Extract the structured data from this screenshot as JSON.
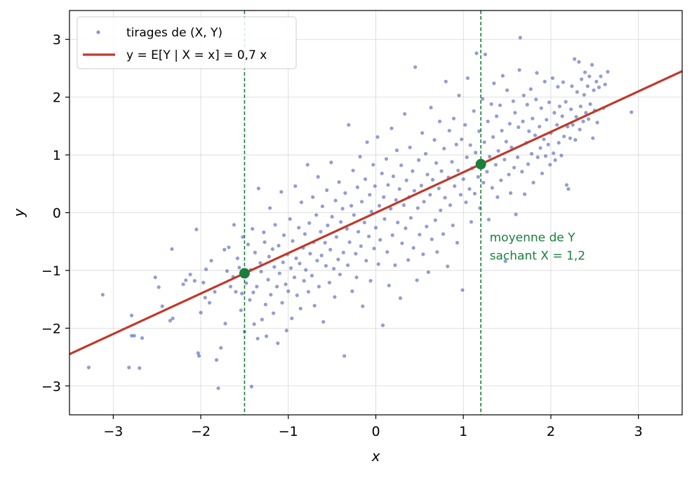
{
  "chart_data": {
    "type": "scatter",
    "title": "",
    "xlabel": "x",
    "ylabel": "y",
    "xlim": [
      -3.5,
      3.5
    ],
    "ylim": [
      -3.5,
      3.5
    ],
    "xticks": [
      -3,
      -2,
      -1,
      0,
      1,
      2,
      3
    ],
    "yticks": [
      -3,
      -2,
      -1,
      0,
      1,
      2,
      3
    ],
    "xtick_labels": [
      "−3",
      "−2",
      "−1",
      "0",
      "1",
      "2",
      "3"
    ],
    "ytick_labels": [
      "−3",
      "−2",
      "−1",
      "0",
      "1",
      "2",
      "3"
    ],
    "grid": true,
    "legend": {
      "placement": "top-left",
      "entries": [
        {
          "label": "tirages de (X, Y)",
          "marker": "dot"
        },
        {
          "label": "y = E[Y | X = x] = 0,7 x",
          "marker": "line"
        }
      ]
    },
    "colors": {
      "points": "#3b4fa8",
      "line": "#c0392b",
      "highlight": "#1a7f3c"
    },
    "regression_line": {
      "slope": 0.7,
      "intercept": 0
    },
    "vertical_lines": [
      -1.5,
      1.2
    ],
    "highlight_points": [
      {
        "x": -1.5,
        "y": -1.05
      },
      {
        "x": 1.2,
        "y": 0.84
      }
    ],
    "annotation": {
      "line1": "moyenne de Y",
      "line2": "sachant X = 1,2",
      "x": 1.3,
      "y": -0.5
    },
    "scatter_points": [
      [
        -3.28,
        -2.68
      ],
      [
        -3.12,
        -1.42
      ],
      [
        -2.82,
        -2.68
      ],
      [
        -2.79,
        -1.78
      ],
      [
        -2.79,
        -2.13
      ],
      [
        -2.76,
        -2.13
      ],
      [
        -2.7,
        -2.69
      ],
      [
        -2.67,
        -2.17
      ],
      [
        -2.52,
        -1.12
      ],
      [
        -2.48,
        -1.29
      ],
      [
        -2.44,
        -1.62
      ],
      [
        -2.35,
        -1.87
      ],
      [
        -2.33,
        -0.63
      ],
      [
        -2.32,
        -1.83
      ],
      [
        -2.2,
        -1.24
      ],
      [
        -2.17,
        -1.17
      ],
      [
        -2.12,
        -1.07
      ],
      [
        -2.07,
        -1.18
      ],
      [
        -2.05,
        -0.29
      ],
      [
        -2.03,
        -2.43
      ],
      [
        -2.02,
        -2.48
      ],
      [
        -2.0,
        -1.73
      ],
      [
        -1.97,
        -1.21
      ],
      [
        -1.95,
        -1.47
      ],
      [
        -1.94,
        -0.98
      ],
      [
        -1.9,
        -1.56
      ],
      [
        -1.88,
        -0.83
      ],
      [
        -1.84,
        -1.37
      ],
      [
        -1.82,
        -2.55
      ],
      [
        -1.8,
        -3.04
      ],
      [
        -1.77,
        -2.34
      ],
      [
        -1.73,
        -0.64
      ],
      [
        -1.72,
        -1.92
      ],
      [
        -1.7,
        -1.01
      ],
      [
        -1.68,
        -0.6
      ],
      [
        -1.66,
        -1.28
      ],
      [
        -1.63,
        -1.11
      ],
      [
        -1.62,
        -0.21
      ],
      [
        -1.6,
        -1.37
      ],
      [
        -1.58,
        -0.79
      ],
      [
        -1.56,
        -0.95
      ],
      [
        -1.54,
        -1.69
      ],
      [
        -1.53,
        -1.4
      ],
      [
        -1.52,
        -0.42
      ],
      [
        -1.5,
        -2.06
      ],
      [
        -1.48,
        -1.22
      ],
      [
        -1.46,
        -0.55
      ],
      [
        -1.44,
        -1.51
      ],
      [
        -1.43,
        -0.99
      ],
      [
        -1.42,
        -3.01
      ],
      [
        -1.41,
        -0.28
      ],
      [
        -1.4,
        -1.38
      ],
      [
        -1.39,
        -1.93
      ],
      [
        -1.38,
        -0.69
      ],
      [
        -1.36,
        -1.28
      ],
      [
        -1.35,
        -2.18
      ],
      [
        -1.34,
        0.42
      ],
      [
        -1.32,
        -0.87
      ],
      [
        -1.31,
        -1.02
      ],
      [
        -1.3,
        -1.85
      ],
      [
        -1.28,
        -0.34
      ],
      [
        -1.27,
        -0.51
      ],
      [
        -1.26,
        -1.59
      ],
      [
        -1.25,
        -2.14
      ],
      [
        -1.23,
        -1.16
      ],
      [
        -1.22,
        -0.76
      ],
      [
        -1.21,
        0.08
      ],
      [
        -1.2,
        -1.42
      ],
      [
        -1.18,
        -0.63
      ],
      [
        -1.17,
        -1.74
      ],
      [
        -1.16,
        -0.94
      ],
      [
        -1.15,
        -0.21
      ],
      [
        -1.13,
        -1.28
      ],
      [
        -1.12,
        -2.26
      ],
      [
        -1.11,
        -0.57
      ],
      [
        -1.1,
        -1.05
      ],
      [
        -1.08,
        0.36
      ],
      [
        -1.07,
        -1.56
      ],
      [
        -1.06,
        -0.86
      ],
      [
        -1.05,
        -0.39
      ],
      [
        -1.03,
        -1.24
      ],
      [
        -1.02,
        -2.04
      ],
      [
        -1.01,
        -0.72
      ],
      [
        -1.0,
        -1.36
      ],
      [
        -0.98,
        -0.11
      ],
      [
        -0.97,
        -0.96
      ],
      [
        -0.96,
        -1.83
      ],
      [
        -0.95,
        -0.49
      ],
      [
        -0.93,
        -1.12
      ],
      [
        -0.92,
        0.46
      ],
      [
        -0.91,
        -0.79
      ],
      [
        -0.9,
        -1.43
      ],
      [
        -0.88,
        -0.26
      ],
      [
        -0.87,
        -0.88
      ],
      [
        -0.86,
        -1.66
      ],
      [
        -0.85,
        0.18
      ],
      [
        -0.83,
        -0.61
      ],
      [
        -0.82,
        -1.18
      ],
      [
        -0.81,
        -0.37
      ],
      [
        -0.8,
        -0.99
      ],
      [
        -0.78,
        0.83
      ],
      [
        -0.77,
        -1.37
      ],
      [
        -0.76,
        -0.18
      ],
      [
        -0.75,
        -0.71
      ],
      [
        -0.73,
        -1.09
      ],
      [
        -0.72,
        0.27
      ],
      [
        -0.71,
        -0.51
      ],
      [
        -0.7,
        -1.61
      ],
      [
        -0.68,
        -0.04
      ],
      [
        -0.67,
        -0.83
      ],
      [
        -0.66,
        0.62
      ],
      [
        -0.65,
        -1.28
      ],
      [
        -0.63,
        -0.33
      ],
      [
        -0.62,
        -0.74
      ],
      [
        -0.61,
        0.11
      ],
      [
        -0.6,
        -1.89
      ],
      [
        -0.58,
        -0.52
      ],
      [
        -0.57,
        -0.92
      ],
      [
        -0.56,
        0.39
      ],
      [
        -0.55,
        -0.22
      ],
      [
        -0.53,
        -1.21
      ],
      [
        -0.52,
        -0.64
      ],
      [
        -0.51,
        0.87
      ],
      [
        -0.5,
        -0.07
      ],
      [
        -0.48,
        -0.97
      ],
      [
        -0.47,
        -1.46
      ],
      [
        -0.46,
        0.21
      ],
      [
        -0.45,
        -0.42
      ],
      [
        -0.43,
        -0.81
      ],
      [
        -0.42,
        0.53
      ],
      [
        -0.41,
        -1.07
      ],
      [
        -0.4,
        -0.16
      ],
      [
        -0.38,
        0.07
      ],
      [
        -0.37,
        -0.69
      ],
      [
        -0.36,
        -2.48
      ],
      [
        -0.35,
        0.34
      ],
      [
        -0.33,
        -0.28
      ],
      [
        -0.32,
        -0.91
      ],
      [
        -0.31,
        1.52
      ],
      [
        -0.3,
        -0.51
      ],
      [
        -0.28,
        0.12
      ],
      [
        -0.27,
        -1.36
      ],
      [
        -0.26,
        0.73
      ],
      [
        -0.25,
        -0.04
      ],
      [
        -0.23,
        -0.71
      ],
      [
        -0.22,
        -1.12
      ],
      [
        -0.21,
        0.44
      ],
      [
        -0.2,
        -0.33
      ],
      [
        -0.18,
        0.97
      ],
      [
        -0.17,
        -0.58
      ],
      [
        -0.16,
        0.19
      ],
      [
        -0.15,
        -1.62
      ],
      [
        -0.13,
        -0.17
      ],
      [
        -0.12,
        0.58
      ],
      [
        -0.11,
        -0.83
      ],
      [
        -0.1,
        1.22
      ],
      [
        -0.08,
        -0.41
      ],
      [
        -0.07,
        0.31
      ],
      [
        -0.06,
        -1.18
      ],
      [
        -0.05,
        0.02
      ],
      [
        -0.03,
        0.83
      ],
      [
        -0.02,
        -0.62
      ],
      [
        -0.01,
        0.46
      ],
      [
        0.0,
        -0.26
      ],
      [
        0.02,
        1.31
      ],
      [
        0.03,
        -0.89
      ],
      [
        0.04,
        0.12
      ],
      [
        0.05,
        -0.47
      ],
      [
        0.07,
        0.68
      ],
      [
        0.08,
        -1.95
      ],
      [
        0.09,
        0.27
      ],
      [
        0.1,
        -0.11
      ],
      [
        0.12,
        0.93
      ],
      [
        0.13,
        -0.68
      ],
      [
        0.14,
        0.48
      ],
      [
        0.15,
        -1.26
      ],
      [
        0.17,
        0.07
      ],
      [
        0.18,
        1.46
      ],
      [
        0.19,
        -0.39
      ],
      [
        0.2,
        0.63
      ],
      [
        0.22,
        -0.91
      ],
      [
        0.23,
        0.22
      ],
      [
        0.24,
        1.08
      ],
      [
        0.25,
        -0.17
      ],
      [
        0.27,
        0.41
      ],
      [
        0.28,
        -1.48
      ],
      [
        0.29,
        0.82
      ],
      [
        0.3,
        -0.53
      ],
      [
        0.32,
        0.13
      ],
      [
        0.33,
        1.71
      ],
      [
        0.34,
        -0.27
      ],
      [
        0.35,
        0.56
      ],
      [
        0.37,
        -0.82
      ],
      [
        0.38,
        0.27
      ],
      [
        0.39,
        1.13
      ],
      [
        0.4,
        -0.09
      ],
      [
        0.42,
        0.72
      ],
      [
        0.43,
        -0.61
      ],
      [
        0.44,
        0.38
      ],
      [
        0.45,
        2.52
      ],
      [
        0.47,
        -1.17
      ],
      [
        0.48,
        0.08
      ],
      [
        0.49,
        0.91
      ],
      [
        0.5,
        -0.38
      ],
      [
        0.52,
        0.47
      ],
      [
        0.53,
        1.38
      ],
      [
        0.54,
        -0.72
      ],
      [
        0.55,
        0.19
      ],
      [
        0.57,
        1.02
      ],
      [
        0.58,
        -0.24
      ],
      [
        0.59,
        0.66
      ],
      [
        0.6,
        -1.03
      ],
      [
        0.62,
        0.31
      ],
      [
        0.63,
        1.82
      ],
      [
        0.64,
        -0.46
      ],
      [
        0.65,
        0.57
      ],
      [
        0.67,
        1.26
      ],
      [
        0.68,
        -0.13
      ],
      [
        0.69,
        0.86
      ],
      [
        0.7,
        -0.68
      ],
      [
        0.72,
        0.42
      ],
      [
        0.73,
        1.58
      ],
      [
        0.74,
        0.04
      ],
      [
        0.75,
        0.72
      ],
      [
        0.77,
        -0.37
      ],
      [
        0.78,
        1.11
      ],
      [
        0.79,
        0.26
      ],
      [
        0.8,
        2.27
      ],
      [
        0.82,
        -0.93
      ],
      [
        0.83,
        0.61
      ],
      [
        0.84,
        1.42
      ],
      [
        0.85,
        0.13
      ],
      [
        0.87,
        0.88
      ],
      [
        0.88,
        -0.22
      ],
      [
        0.89,
        1.63
      ],
      [
        0.9,
        0.46
      ],
      [
        0.92,
        1.18
      ],
      [
        0.93,
        -0.52
      ],
      [
        0.94,
        0.73
      ],
      [
        0.95,
        2.03
      ],
      [
        0.97,
        0.31
      ],
      [
        0.98,
        1.27
      ],
      [
        0.99,
        -1.34
      ],
      [
        1.0,
        0.58
      ],
      [
        1.02,
        1.52
      ],
      [
        1.03,
        0.18
      ],
      [
        1.04,
        0.96
      ],
      [
        1.05,
        2.33
      ],
      [
        1.07,
        0.41
      ],
      [
        1.08,
        1.17
      ],
      [
        1.09,
        -0.16
      ],
      [
        1.1,
        0.77
      ],
      [
        1.12,
        1.76
      ],
      [
        1.13,
        0.33
      ],
      [
        1.14,
        1.04
      ],
      [
        1.15,
        2.76
      ],
      [
        1.17,
        0.62
      ],
      [
        1.18,
        1.41
      ],
      [
        1.19,
        0.08
      ],
      [
        1.2,
        0.88
      ],
      [
        1.22,
        1.97
      ],
      [
        1.23,
        0.52
      ],
      [
        1.24,
        1.22
      ],
      [
        1.25,
        2.74
      ],
      [
        1.27,
        0.71
      ],
      [
        1.28,
        1.58
      ],
      [
        1.29,
        -0.12
      ],
      [
        1.3,
        0.97
      ],
      [
        1.32,
        1.88
      ],
      [
        1.33,
        0.43
      ],
      [
        1.34,
        1.31
      ],
      [
        1.35,
        2.24
      ],
      [
        1.37,
        0.83
      ],
      [
        1.38,
        1.67
      ],
      [
        1.39,
        0.27
      ],
      [
        1.4,
        1.07
      ],
      [
        1.42,
        1.86
      ],
      [
        1.43,
        0.56
      ],
      [
        1.44,
        1.42
      ],
      [
        1.45,
        2.37
      ],
      [
        1.47,
        0.92
      ],
      [
        1.48,
        -0.84
      ],
      [
        1.49,
        1.23
      ],
      [
        1.5,
        2.12
      ],
      [
        1.52,
        0.66
      ],
      [
        1.53,
        1.54
      ],
      [
        1.54,
        0.34
      ],
      [
        1.55,
        1.13
      ],
      [
        1.57,
        1.93
      ],
      [
        1.58,
        0.78
      ],
      [
        1.59,
        1.73
      ],
      [
        1.6,
        -0.03
      ],
      [
        1.62,
        0.96
      ],
      [
        1.63,
        1.48
      ],
      [
        1.64,
        2.47
      ],
      [
        1.65,
        3.03
      ],
      [
        1.67,
        0.71
      ],
      [
        1.68,
        1.58
      ],
      [
        1.69,
        2.03
      ],
      [
        1.7,
        0.32
      ],
      [
        1.72,
        1.21
      ],
      [
        1.73,
        1.87
      ],
      [
        1.74,
        0.84
      ],
      [
        1.75,
        1.41
      ],
      [
        1.77,
        2.14
      ],
      [
        1.78,
        1.02
      ],
      [
        1.79,
        1.63
      ],
      [
        1.8,
        0.52
      ],
      [
        1.82,
        1.34
      ],
      [
        1.83,
        1.96
      ],
      [
        1.84,
        2.42
      ],
      [
        1.85,
        0.96
      ],
      [
        1.87,
        1.49
      ],
      [
        1.88,
        1.12
      ],
      [
        1.89,
        1.81
      ],
      [
        1.9,
        0.68
      ],
      [
        1.92,
        1.27
      ],
      [
        1.93,
        2.27
      ],
      [
        1.94,
        0.98
      ],
      [
        1.95,
        1.61
      ],
      [
        1.97,
        1.18
      ],
      [
        1.98,
        1.91
      ],
      [
        1.99,
        0.83
      ],
      [
        2.0,
        1.38
      ],
      [
        2.02,
        2.33
      ],
      [
        2.03,
        1.03
      ],
      [
        2.04,
        1.73
      ],
      [
        2.05,
        0.91
      ],
      [
        2.07,
        1.52
      ],
      [
        2.08,
        2.18
      ],
      [
        2.09,
        1.21
      ],
      [
        2.1,
        1.84
      ],
      [
        2.12,
        0.99
      ],
      [
        2.13,
        1.67
      ],
      [
        2.14,
        2.26
      ],
      [
        2.15,
        1.32
      ],
      [
        2.17,
        1.92
      ],
      [
        2.18,
        0.48
      ],
      [
        2.19,
        1.49
      ],
      [
        2.2,
        0.41
      ],
      [
        2.22,
        1.29
      ],
      [
        2.23,
        1.79
      ],
      [
        2.24,
        2.19
      ],
      [
        2.25,
        1.52
      ],
      [
        2.27,
        2.66
      ],
      [
        2.28,
        1.26
      ],
      [
        2.29,
        1.66
      ],
      [
        2.3,
        2.09
      ],
      [
        2.32,
        2.61
      ],
      [
        2.33,
        1.44
      ],
      [
        2.34,
        1.84
      ],
      [
        2.35,
        2.31
      ],
      [
        2.37,
        1.58
      ],
      [
        2.38,
        2.04
      ],
      [
        2.39,
        2.43
      ],
      [
        2.4,
        1.73
      ],
      [
        2.42,
        2.19
      ],
      [
        2.43,
        1.62
      ],
      [
        2.44,
        2.36
      ],
      [
        2.45,
        1.88
      ],
      [
        2.47,
        2.56
      ],
      [
        2.48,
        1.29
      ],
      [
        2.49,
        2.12
      ],
      [
        2.5,
        1.77
      ],
      [
        2.52,
        2.27
      ],
      [
        2.53,
        1.56
      ],
      [
        2.55,
        2.17
      ],
      [
        2.57,
        2.36
      ],
      [
        2.6,
        1.81
      ],
      [
        2.62,
        2.22
      ],
      [
        2.65,
        2.44
      ],
      [
        2.92,
        1.74
      ]
    ]
  }
}
